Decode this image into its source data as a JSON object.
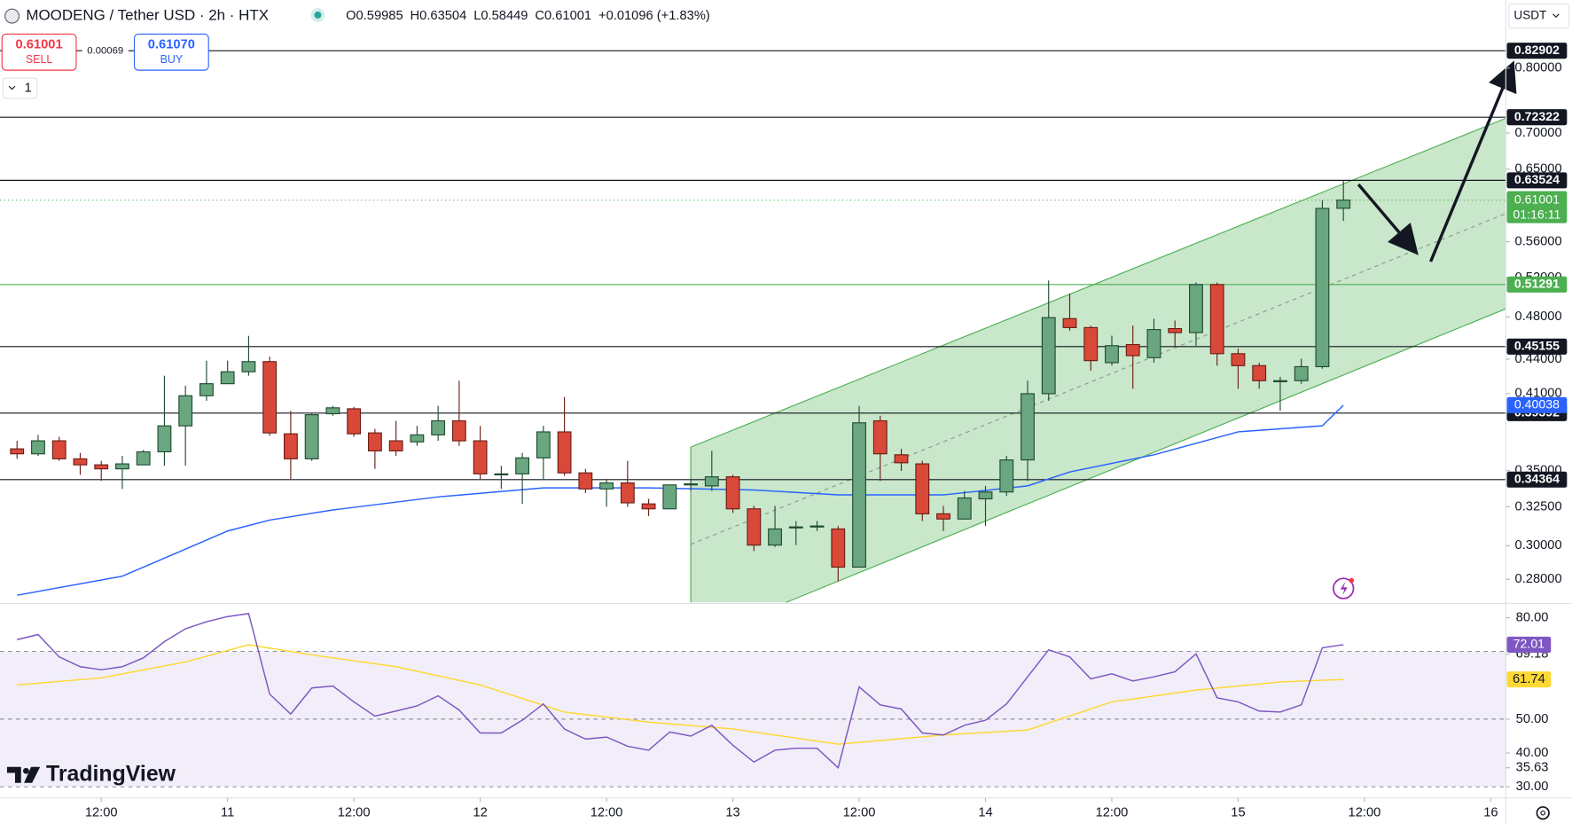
{
  "chart_data": {
    "type": "candlestick",
    "title": "MOODENG / Tether USD · 2h · HTX",
    "header_labels": [
      "O",
      "H",
      "L",
      "C"
    ],
    "change": "+0.01096 (+1.83%)",
    "up_color": "#6aa67f",
    "down_color": "#d9493a",
    "log_scale": true,
    "x": [
      4,
      6,
      8,
      10,
      12,
      14,
      16,
      18,
      20,
      22,
      24,
      26,
      28,
      30,
      32,
      34,
      36,
      38,
      40,
      42,
      44,
      46,
      48,
      50,
      52,
      54,
      56,
      58,
      60,
      62,
      64,
      66,
      68,
      70,
      72,
      74,
      76,
      78,
      80,
      82,
      84,
      86,
      88,
      90,
      92,
      94,
      96,
      98,
      100,
      102,
      104,
      106,
      108,
      110,
      112,
      114,
      116,
      118,
      120,
      122,
      124,
      126,
      128,
      130
    ],
    "open": [
      0.366,
      0.3623,
      0.3721,
      0.3586,
      0.3542,
      0.3513,
      0.3542,
      0.3638,
      0.3837,
      0.4082,
      0.4184,
      0.4288,
      0.4378,
      0.3775,
      0.3586,
      0.3934,
      0.3974,
      0.3782,
      0.3721,
      0.3713,
      0.3767,
      0.3877,
      0.3721,
      0.3477,
      0.3477,
      0.3593,
      0.379,
      0.3484,
      0.3371,
      0.3413,
      0.3269,
      0.3236,
      0.3399,
      0.3392,
      0.3456,
      0.3236,
      0.3004,
      0.3118,
      0.3118,
      0.3105,
      0.2871,
      0.3877,
      0.3616,
      0.3549,
      0.3203,
      0.3169,
      0.3303,
      0.335,
      0.3578,
      0.4099,
      0.4782,
      0.4695,
      0.4369,
      0.4534,
      0.4414,
      0.4685,
      0.4647,
      0.5129,
      0.445,
      0.4342,
      0.421,
      0.421,
      0.4333,
      0.59985
    ],
    "high": [
      0.3721,
      0.3767,
      0.3752,
      0.363,
      0.3571,
      0.3608,
      0.3652,
      0.4253,
      0.4167,
      0.4387,
      0.4387,
      0.4616,
      0.4423,
      0.3958,
      0.3942,
      0.3998,
      0.399,
      0.3813,
      0.3877,
      0.3837,
      0.3998,
      0.421,
      0.3837,
      0.3535,
      0.363,
      0.3837,
      0.4072,
      0.3513,
      0.3441,
      0.3571,
      0.3303,
      0.3399,
      0.3441,
      0.3645,
      0.347,
      0.3256,
      0.3256,
      0.3156,
      0.3156,
      0.3124,
      0.3998,
      0.3918,
      0.366,
      0.3571,
      0.3256,
      0.3357,
      0.3392,
      0.3608,
      0.421,
      0.5172,
      0.5035,
      0.4714,
      0.4618,
      0.4714,
      0.4782,
      0.4763,
      0.5151,
      0.5151,
      0.4497,
      0.4369,
      0.4244,
      0.4405,
      0.6097,
      0.63504
    ],
    "low": [
      0.3586,
      0.3608,
      0.3571,
      0.347,
      0.3427,
      0.3371,
      0.3542,
      0.3535,
      0.3535,
      0.404,
      0.4184,
      0.4253,
      0.376,
      0.3441,
      0.3571,
      0.3918,
      0.3752,
      0.3513,
      0.3608,
      0.3683,
      0.3721,
      0.3683,
      0.3441,
      0.3371,
      0.3269,
      0.3441,
      0.3463,
      0.3343,
      0.3249,
      0.3249,
      0.3189,
      0.3236,
      0.3357,
      0.3357,
      0.3209,
      0.2967,
      0.2992,
      0.3004,
      0.3092,
      0.2789,
      0.2871,
      0.3427,
      0.3498,
      0.3156,
      0.3092,
      0.3169,
      0.3124,
      0.3323,
      0.3427,
      0.404,
      0.4666,
      0.4297,
      0.4342,
      0.4141,
      0.4369,
      0.4515,
      0.4524,
      0.4342,
      0.4141,
      0.4141,
      0.3958,
      0.4184,
      0.4315,
      0.58449
    ],
    "close": [
      0.3623,
      0.3721,
      0.3586,
      0.3542,
      0.3513,
      0.3549,
      0.3638,
      0.3837,
      0.4082,
      0.4184,
      0.4288,
      0.4378,
      0.3782,
      0.3586,
      0.3926,
      0.3982,
      0.3775,
      0.3645,
      0.3645,
      0.3767,
      0.3877,
      0.3721,
      0.3477,
      0.3477,
      0.3593,
      0.379,
      0.3484,
      0.3371,
      0.3413,
      0.3276,
      0.3236,
      0.3399,
      0.3406,
      0.3456,
      0.3236,
      0.3004,
      0.3105,
      0.3118,
      0.3124,
      0.2871,
      0.3861,
      0.3623,
      0.3557,
      0.3203,
      0.3169,
      0.3309,
      0.335,
      0.3578,
      0.4099,
      0.4792,
      0.4695,
      0.4387,
      0.4524,
      0.4432,
      0.4676,
      0.4647,
      0.5129,
      0.445,
      0.4342,
      0.421,
      0.421,
      0.4333,
      0.5997,
      0.61001
    ],
    "xlim": [
      2.381,
      145.43
    ],
    "ylim": [
      0.267,
      0.92
    ],
    "xticks": [
      {
        "value": 12,
        "label": "12:00"
      },
      {
        "value": 24,
        "label": "11"
      },
      {
        "value": 36,
        "label": "12:00"
      },
      {
        "value": 48,
        "label": "12"
      },
      {
        "value": 60,
        "label": "12:00"
      },
      {
        "value": 72,
        "label": "13"
      },
      {
        "value": 84,
        "label": "12:00"
      },
      {
        "value": 96,
        "label": "14"
      },
      {
        "value": 108,
        "label": "12:00"
      },
      {
        "value": 120,
        "label": "15"
      },
      {
        "value": 132,
        "label": "12:00"
      },
      {
        "value": 144,
        "label": "16"
      }
    ],
    "yticks": [
      {
        "value": 0.8,
        "label": "0.80000"
      },
      {
        "value": 0.7,
        "label": "0.70000"
      },
      {
        "value": 0.65,
        "label": "0.65000"
      },
      {
        "value": 0.56,
        "label": "0.56000"
      },
      {
        "value": 0.52,
        "label": "0.52000"
      },
      {
        "value": 0.48,
        "label": "0.48000"
      },
      {
        "value": 0.44,
        "label": "0.44000"
      },
      {
        "value": 0.41,
        "label": "0.41000"
      },
      {
        "value": 0.35,
        "label": "0.35000"
      },
      {
        "value": 0.325,
        "label": "0.32500"
      },
      {
        "value": 0.3,
        "label": "0.30000"
      },
      {
        "value": 0.28,
        "label": "0.28000"
      }
    ],
    "levels": [
      {
        "value": 0.82902,
        "color": "#131722"
      },
      {
        "value": 0.72322,
        "color": "#131722"
      },
      {
        "value": 0.63524,
        "color": "#131722"
      },
      {
        "value": 0.51291,
        "color": "#4caf50"
      },
      {
        "value": 0.45155,
        "color": "#131722"
      },
      {
        "value": 0.39392,
        "color": "#131722"
      },
      {
        "value": 0.34364,
        "color": "#131722"
      }
    ],
    "price_color": "#4caf50",
    "countdown": "01:16:11",
    "ma": {
      "color": "#2962ff",
      "x": [
        4,
        14,
        20,
        24,
        28,
        34,
        44,
        54,
        64,
        74,
        82,
        92,
        100,
        104,
        112,
        120,
        128,
        130
      ],
      "values": [
        0.271,
        0.2818,
        0.2979,
        0.3092,
        0.3162,
        0.3229,
        0.3316,
        0.3378,
        0.3378,
        0.3364,
        0.333,
        0.333,
        0.3392,
        0.3491,
        0.3616,
        0.379,
        0.3837,
        0.40038
      ]
    },
    "rsi": {
      "color": "#7e57c2",
      "values": [
        73.5,
        75.0,
        68.4,
        65.5,
        64.6,
        65.5,
        68.1,
        72.9,
        76.7,
        78.8,
        80.3,
        81.2,
        57.4,
        51.5,
        59.2,
        59.8,
        55.1,
        50.9,
        52.4,
        53.9,
        56.9,
        52.7,
        45.9,
        45.9,
        49.7,
        54.5,
        47.1,
        44.1,
        44.7,
        42.0,
        40.8,
        46.2,
        45.0,
        48.2,
        42.3,
        37.3,
        40.8,
        41.4,
        41.4,
        35.63,
        59.5,
        54.2,
        53.0,
        45.9,
        45.3,
        48.2,
        49.7,
        54.5,
        62.5,
        70.5,
        68.4,
        61.9,
        63.4,
        61.3,
        62.5,
        64.0,
        69.3,
        56.3,
        55.1,
        52.4,
        52.1,
        54.2,
        71.1,
        72.01
      ],
      "ylim": [
        27.0,
        83.9
      ],
      "yticks": [
        {
          "value": 80,
          "label": "80.00"
        },
        69.18,
        {
          "value": 50,
          "label": "50.00"
        },
        {
          "value": 40,
          "label": "40.00"
        },
        35.63,
        {
          "value": 30,
          "label": "30.00"
        }
      ],
      "bands": [
        70,
        50,
        30
      ],
      "signal": {
        "color": "#fdd835",
        "x": [
          4,
          12,
          20,
          26,
          32,
          40,
          48,
          56,
          64,
          72,
          82,
          92,
          100,
          108,
          116,
          124,
          130
        ],
        "values": [
          60.1,
          62.2,
          66.9,
          72.0,
          69.0,
          65.5,
          60.1,
          52.1,
          49.1,
          47.1,
          42.6,
          45.3,
          46.8,
          55.1,
          58.6,
          61.0,
          61.74
        ]
      }
    }
  },
  "quote": {
    "sell": "0.61001",
    "sell_label": "SELL",
    "spread": "0.00069",
    "buy": "0.61070",
    "buy_label": "BUY"
  },
  "pane_count": "1",
  "currency": "USDT",
  "watermark": "TradingView"
}
